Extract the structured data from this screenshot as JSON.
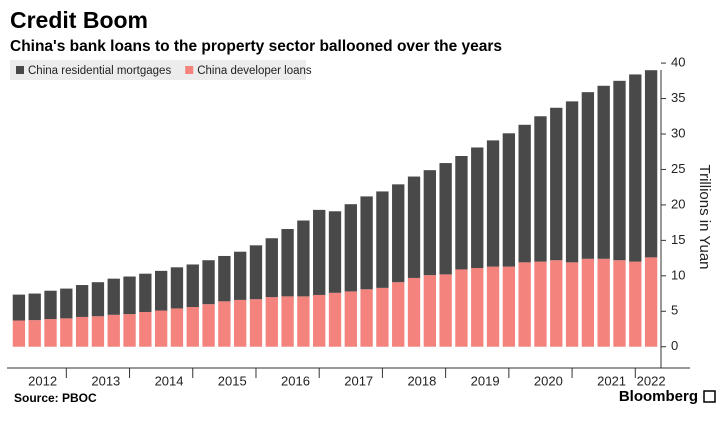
{
  "chart_data": {
    "type": "stacked_bar",
    "title": "Credit Boom",
    "subtitle": "China's bank loans to the property sector ballooned over the years",
    "y_axis_label": "Trillions in Yuan",
    "source": "Source: PBOC",
    "brand": "Bloomberg",
    "categories": [
      null,
      "2012",
      null,
      null,
      null,
      "2013",
      null,
      null,
      null,
      "2014",
      null,
      null,
      null,
      "2015",
      null,
      null,
      null,
      "2016",
      null,
      null,
      null,
      "2017",
      null,
      null,
      null,
      "2018",
      null,
      null,
      null,
      "2019",
      null,
      null,
      null,
      "2020",
      null,
      null,
      null,
      "2021",
      null,
      null,
      "2022"
    ],
    "series": [
      {
        "name": "China developer loans",
        "color": "#f4837d",
        "values": [
          3.7,
          3.75,
          3.9,
          4.0,
          4.2,
          4.3,
          4.5,
          4.6,
          4.9,
          5.1,
          5.4,
          5.6,
          6.0,
          6.4,
          6.6,
          6.7,
          7.0,
          7.1,
          7.1,
          7.3,
          7.6,
          7.8,
          8.1,
          8.3,
          9.1,
          9.7,
          10.1,
          10.2,
          10.9,
          11.1,
          11.3,
          11.3,
          11.9,
          12.0,
          12.2,
          11.9,
          12.4,
          12.4,
          12.2,
          12.0,
          12.6
        ]
      },
      {
        "name": "China residential mortgages",
        "color": "#494949",
        "values": [
          3.65,
          3.75,
          4.0,
          4.2,
          4.5,
          4.8,
          5.1,
          5.3,
          5.4,
          5.6,
          5.8,
          6.0,
          6.2,
          6.4,
          6.8,
          7.6,
          8.3,
          9.5,
          10.7,
          12.0,
          11.5,
          12.3,
          13.1,
          13.6,
          13.8,
          14.3,
          14.8,
          15.7,
          16.0,
          17.0,
          17.8,
          18.8,
          19.4,
          20.5,
          21.5,
          22.7,
          23.5,
          24.4,
          25.3,
          26.4,
          26.4
        ]
      }
    ],
    "legend_order": [
      1,
      0
    ],
    "ylim": [
      -3,
      41
    ],
    "yticks": [
      0,
      5,
      10,
      15,
      20,
      25,
      30,
      35,
      40
    ],
    "grid": false
  }
}
